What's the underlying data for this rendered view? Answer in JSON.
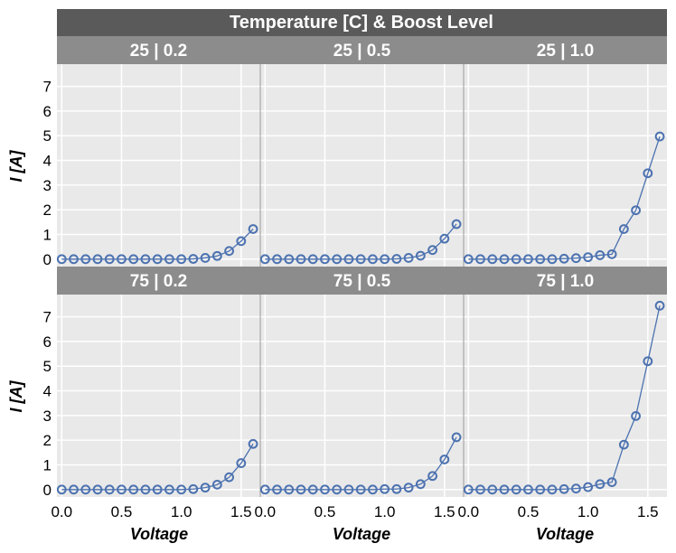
{
  "chart_data": {
    "type": "line",
    "title": "Temperature [C] & Boost Level",
    "xlabel": "Voltage",
    "ylabel": "I [A]",
    "xlim": [
      -0.04,
      1.66
    ],
    "ylim": [
      -0.3,
      7.9
    ],
    "xticks": [
      0.0,
      0.5,
      1.0,
      1.5
    ],
    "xtick_labels": [
      "0.0",
      "0.5",
      "1.0",
      "1.5"
    ],
    "yticks": [
      0,
      1,
      2,
      3,
      4,
      5,
      6,
      7
    ],
    "ytick_labels": [
      "0",
      "1",
      "2",
      "3",
      "4",
      "5",
      "6",
      "7"
    ],
    "grid": true,
    "x": [
      0.0,
      0.1,
      0.2,
      0.3,
      0.4,
      0.5,
      0.6,
      0.7,
      0.8,
      0.9,
      1.0,
      1.1,
      1.2,
      1.3,
      1.4,
      1.5,
      1.6
    ],
    "panels": [
      {
        "label": "25 | 0.2",
        "values": [
          0,
          0,
          0,
          0,
          0,
          0,
          0,
          0,
          0,
          0,
          0,
          0.01,
          0.05,
          0.13,
          0.33,
          0.73,
          1.22
        ]
      },
      {
        "label": "25 | 0.5",
        "values": [
          0,
          0,
          0,
          0,
          0,
          0,
          0,
          0,
          0,
          0,
          0,
          0.01,
          0.05,
          0.14,
          0.37,
          0.83,
          1.42
        ]
      },
      {
        "label": "25 | 1.0",
        "values": [
          0,
          0,
          0,
          0,
          0,
          0,
          0,
          0,
          0.02,
          0.04,
          0.08,
          0.16,
          0.2,
          1.22,
          1.98,
          3.48,
          4.97
        ]
      },
      {
        "label": "75 | 0.2",
        "values": [
          0,
          0,
          0,
          0,
          0,
          0,
          0,
          0,
          0,
          0,
          0,
          0.02,
          0.08,
          0.2,
          0.5,
          1.07,
          1.85
        ]
      },
      {
        "label": "75 | 0.5",
        "values": [
          0,
          0,
          0,
          0,
          0,
          0,
          0,
          0,
          0,
          0,
          0.02,
          0.02,
          0.08,
          0.22,
          0.55,
          1.22,
          2.12
        ]
      },
      {
        "label": "75 | 1.0",
        "values": [
          0,
          0,
          0,
          0,
          0,
          0,
          0,
          0,
          0.02,
          0.04,
          0.1,
          0.22,
          0.3,
          1.82,
          2.98,
          5.2,
          7.45
        ]
      }
    ],
    "series_color": "#4c72b0",
    "panel_bg": "#e9e9e9",
    "strip_color": "#8c8c8c",
    "title_strip_color": "#5a5a5a"
  }
}
